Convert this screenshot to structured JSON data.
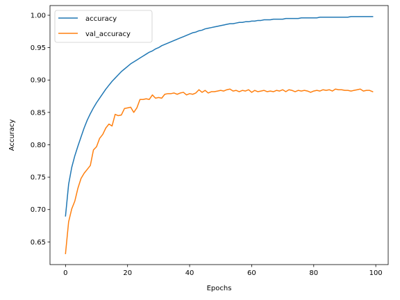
{
  "chart_data": {
    "type": "line",
    "title": "",
    "xlabel": "Epochs",
    "ylabel": "Accuracy",
    "xlim": [
      -5,
      104
    ],
    "ylim": [
      0.615,
      1.015
    ],
    "xticks": [
      0,
      20,
      40,
      60,
      80,
      100
    ],
    "xtick_labels": [
      "0",
      "20",
      "40",
      "60",
      "80",
      "100"
    ],
    "yticks": [
      0.65,
      0.7,
      0.75,
      0.8,
      0.85,
      0.9,
      0.95,
      1.0
    ],
    "ytick_labels": [
      "0.65",
      "0.70",
      "0.75",
      "0.80",
      "0.85",
      "0.90",
      "0.95",
      "1.00"
    ],
    "grid": false,
    "legend_position": "top-left",
    "series": [
      {
        "name": "accuracy",
        "color": "#1f77b4",
        "x": [
          0,
          1,
          2,
          3,
          4,
          5,
          6,
          7,
          8,
          9,
          10,
          11,
          12,
          13,
          14,
          15,
          16,
          17,
          18,
          19,
          20,
          21,
          22,
          23,
          24,
          25,
          26,
          27,
          28,
          29,
          30,
          31,
          32,
          33,
          34,
          35,
          36,
          37,
          38,
          39,
          40,
          41,
          42,
          43,
          44,
          45,
          46,
          47,
          48,
          49,
          50,
          51,
          52,
          53,
          54,
          55,
          56,
          57,
          58,
          59,
          60,
          61,
          62,
          63,
          64,
          65,
          66,
          67,
          68,
          69,
          70,
          71,
          72,
          73,
          74,
          75,
          76,
          77,
          78,
          79,
          80,
          81,
          82,
          83,
          84,
          85,
          86,
          87,
          88,
          89,
          90,
          91,
          92,
          93,
          94,
          95,
          96,
          97,
          98,
          99
        ],
        "values": [
          0.69,
          0.739,
          0.765,
          0.783,
          0.798,
          0.812,
          0.826,
          0.838,
          0.848,
          0.857,
          0.865,
          0.872,
          0.879,
          0.886,
          0.892,
          0.898,
          0.903,
          0.908,
          0.913,
          0.917,
          0.921,
          0.925,
          0.928,
          0.931,
          0.934,
          0.937,
          0.94,
          0.943,
          0.945,
          0.948,
          0.95,
          0.953,
          0.955,
          0.957,
          0.959,
          0.961,
          0.963,
          0.965,
          0.967,
          0.969,
          0.971,
          0.973,
          0.974,
          0.976,
          0.977,
          0.979,
          0.98,
          0.981,
          0.982,
          0.983,
          0.984,
          0.985,
          0.986,
          0.987,
          0.987,
          0.988,
          0.989,
          0.989,
          0.99,
          0.99,
          0.991,
          0.991,
          0.992,
          0.992,
          0.993,
          0.993,
          0.993,
          0.994,
          0.994,
          0.994,
          0.994,
          0.995,
          0.995,
          0.995,
          0.995,
          0.995,
          0.996,
          0.996,
          0.996,
          0.996,
          0.996,
          0.996,
          0.997,
          0.997,
          0.997,
          0.997,
          0.997,
          0.997,
          0.997,
          0.997,
          0.997,
          0.997,
          0.998,
          0.998,
          0.998,
          0.998,
          0.998,
          0.998,
          0.998,
          0.998
        ]
      },
      {
        "name": "val_accuracy",
        "color": "#ff7f0e",
        "x": [
          0,
          1,
          2,
          3,
          4,
          5,
          6,
          7,
          8,
          9,
          10,
          11,
          12,
          13,
          14,
          15,
          16,
          17,
          18,
          19,
          20,
          21,
          22,
          23,
          24,
          25,
          26,
          27,
          28,
          29,
          30,
          31,
          32,
          33,
          34,
          35,
          36,
          37,
          38,
          39,
          40,
          41,
          42,
          43,
          44,
          45,
          46,
          47,
          48,
          49,
          50,
          51,
          52,
          53,
          54,
          55,
          56,
          57,
          58,
          59,
          60,
          61,
          62,
          63,
          64,
          65,
          66,
          67,
          68,
          69,
          70,
          71,
          72,
          73,
          74,
          75,
          76,
          77,
          78,
          79,
          80,
          81,
          82,
          83,
          84,
          85,
          86,
          87,
          88,
          89,
          90,
          91,
          92,
          93,
          94,
          95,
          96,
          97,
          98,
          99
        ],
        "values": [
          0.632,
          0.681,
          0.701,
          0.713,
          0.733,
          0.748,
          0.756,
          0.762,
          0.768,
          0.792,
          0.797,
          0.81,
          0.816,
          0.826,
          0.832,
          0.829,
          0.847,
          0.845,
          0.846,
          0.856,
          0.857,
          0.858,
          0.85,
          0.857,
          0.87,
          0.87,
          0.871,
          0.87,
          0.877,
          0.872,
          0.873,
          0.872,
          0.878,
          0.879,
          0.879,
          0.88,
          0.878,
          0.88,
          0.881,
          0.877,
          0.879,
          0.878,
          0.88,
          0.885,
          0.881,
          0.884,
          0.88,
          0.882,
          0.882,
          0.883,
          0.884,
          0.883,
          0.885,
          0.886,
          0.883,
          0.884,
          0.882,
          0.884,
          0.883,
          0.885,
          0.881,
          0.884,
          0.882,
          0.883,
          0.884,
          0.882,
          0.883,
          0.882,
          0.884,
          0.883,
          0.885,
          0.882,
          0.885,
          0.884,
          0.882,
          0.884,
          0.883,
          0.884,
          0.883,
          0.881,
          0.883,
          0.884,
          0.883,
          0.885,
          0.884,
          0.885,
          0.883,
          0.886,
          0.885,
          0.885,
          0.884,
          0.884,
          0.883,
          0.884,
          0.885,
          0.886,
          0.883,
          0.884,
          0.884,
          0.882
        ]
      }
    ]
  }
}
